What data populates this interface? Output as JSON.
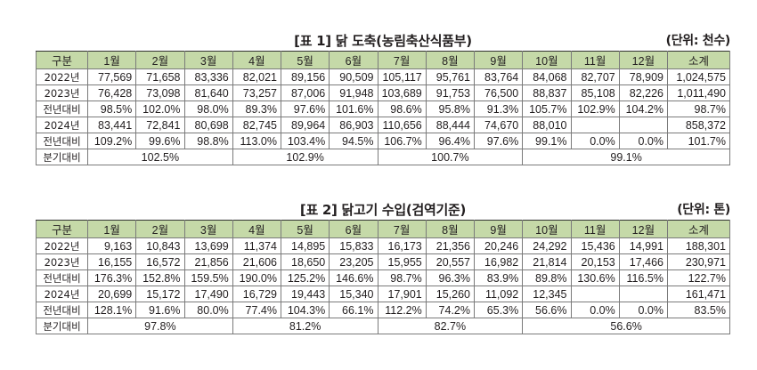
{
  "table1": {
    "title": "[표 1] 닭 도축(농림축산식품부)",
    "unit": "(단위: 천수)",
    "headers": [
      "구분",
      "1월",
      "2월",
      "3월",
      "4월",
      "5월",
      "6월",
      "7월",
      "8월",
      "9월",
      "10월",
      "11월",
      "12월",
      "소계"
    ],
    "rows": [
      {
        "label": "2022년",
        "values": [
          "77,569",
          "71,658",
          "83,336",
          "82,021",
          "89,156",
          "90,509",
          "105,117",
          "95,761",
          "83,764",
          "84,068",
          "82,707",
          "78,909",
          "1,024,575"
        ]
      },
      {
        "label": "2023년",
        "values": [
          "76,428",
          "73,098",
          "81,640",
          "73,257",
          "87,006",
          "91,948",
          "103,689",
          "91,753",
          "76,500",
          "88,837",
          "85,108",
          "82,226",
          "1,011,490"
        ]
      },
      {
        "label": "전년대비",
        "values": [
          "98.5%",
          "102.0%",
          "98.0%",
          "89.3%",
          "97.6%",
          "101.6%",
          "98.6%",
          "95.8%",
          "91.3%",
          "105.7%",
          "102.9%",
          "104.2%",
          "98.7%"
        ]
      },
      {
        "label": "2024년",
        "values": [
          "83,441",
          "72,841",
          "80,698",
          "82,745",
          "89,964",
          "86,903",
          "110,656",
          "88,444",
          "74,670",
          "88,010",
          "",
          "",
          "858,372"
        ]
      },
      {
        "label": "전년대비",
        "values": [
          "109.2%",
          "99.6%",
          "98.8%",
          "113.0%",
          "103.4%",
          "94.5%",
          "106.7%",
          "96.4%",
          "97.6%",
          "99.1%",
          "0.0%",
          "0.0%",
          "101.7%"
        ]
      }
    ],
    "quarter_label": "분기대비",
    "quarters": [
      "102.5%",
      "102.9%",
      "100.7%",
      "99.1%"
    ]
  },
  "table2": {
    "title": "[표 2] 닭고기 수입(검역기준)",
    "unit": "(단위: 톤)",
    "headers": [
      "구분",
      "1월",
      "2월",
      "3월",
      "4월",
      "5월",
      "6월",
      "7월",
      "8월",
      "9월",
      "10월",
      "11월",
      "12월",
      "소계"
    ],
    "rows": [
      {
        "label": "2022년",
        "values": [
          "9,163",
          "10,843",
          "13,699",
          "11,374",
          "14,895",
          "15,833",
          "16,173",
          "21,356",
          "20,246",
          "24,292",
          "15,436",
          "14,991",
          "188,301"
        ]
      },
      {
        "label": "2023년",
        "values": [
          "16,155",
          "16,572",
          "21,856",
          "21,606",
          "18,650",
          "23,205",
          "15,955",
          "20,557",
          "16,982",
          "21,814",
          "20,153",
          "17,466",
          "230,971"
        ]
      },
      {
        "label": "전년대비",
        "values": [
          "176.3%",
          "152.8%",
          "159.5%",
          "190.0%",
          "125.2%",
          "146.6%",
          "98.7%",
          "96.3%",
          "83.9%",
          "89.8%",
          "130.6%",
          "116.5%",
          "122.7%"
        ]
      },
      {
        "label": "2024년",
        "values": [
          "20,699",
          "15,172",
          "17,490",
          "16,729",
          "19,443",
          "15,340",
          "17,901",
          "15,260",
          "11,092",
          "12,345",
          "",
          "",
          "161,471"
        ]
      },
      {
        "label": "전년대비",
        "values": [
          "128.1%",
          "91.6%",
          "80.0%",
          "77.4%",
          "104.3%",
          "66.1%",
          "112.2%",
          "74.2%",
          "65.3%",
          "56.6%",
          "0.0%",
          "0.0%",
          "83.5%"
        ]
      }
    ],
    "quarter_label": "분기대비",
    "quarters": [
      "97.8%",
      "81.2%",
      "82.7%",
      "56.6%"
    ]
  }
}
